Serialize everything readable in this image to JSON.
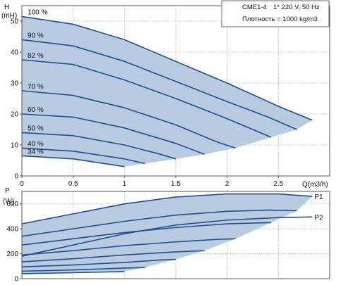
{
  "chart_data": [
    {
      "type": "line",
      "panel": "head",
      "ylabel": "H",
      "ylabel_unit": "(mH)",
      "xlim": [
        0,
        3.0
      ],
      "ylim": [
        0,
        55
      ],
      "xticks": [
        0,
        0.5,
        1,
        1.5,
        2,
        2.5
      ],
      "xtick_labels": [
        "0",
        "0.5",
        "1",
        "1.5",
        "2",
        "2.5"
      ],
      "yticks": [
        0,
        10,
        20,
        30,
        40,
        50
      ],
      "ytick_labels": [
        "0",
        "10",
        "20",
        "30",
        "40",
        "50"
      ],
      "grid": true,
      "info_title": "CME1-4",
      "info_supply": "1* 220 V, 50 Hz",
      "info_density": "Плотность = 1000 kg/m3",
      "series": [
        {
          "name": "100 %",
          "x": [
            0,
            0.5,
            1.0,
            1.5,
            2.0,
            2.5,
            2.83
          ],
          "y": [
            51.5,
            49,
            44,
            37,
            30,
            22.5,
            18
          ]
        },
        {
          "name": "90 %",
          "x": [
            0,
            0.5,
            1.0,
            1.5,
            2.0,
            2.4,
            2.68
          ],
          "y": [
            44,
            42,
            37,
            30.5,
            24,
            19,
            15
          ]
        },
        {
          "name": "82 %",
          "x": [
            0,
            0.5,
            1.0,
            1.5,
            2.0,
            2.43
          ],
          "y": [
            37.5,
            36,
            31,
            25,
            18.5,
            12.5
          ]
        },
        {
          "name": "70 %",
          "x": [
            0,
            0.5,
            1.0,
            1.5,
            1.9,
            2.08
          ],
          "y": [
            27.5,
            26,
            22,
            16.5,
            11,
            9
          ]
        },
        {
          "name": "60 %",
          "x": [
            0,
            0.5,
            1.0,
            1.5,
            1.78
          ],
          "y": [
            20,
            19,
            15.5,
            10.5,
            7
          ]
        },
        {
          "name": "50 %",
          "x": [
            0,
            0.5,
            1.0,
            1.35,
            1.5
          ],
          "y": [
            14,
            13,
            10,
            7,
            5.5
          ]
        },
        {
          "name": "40 %",
          "x": [
            0,
            0.5,
            1.0,
            1.2
          ],
          "y": [
            9,
            8,
            5.5,
            4
          ]
        },
        {
          "name": "34 %",
          "x": [
            0,
            0.5,
            0.9,
            1.0
          ],
          "y": [
            6.5,
            5.5,
            3.5,
            3
          ]
        }
      ]
    },
    {
      "type": "line",
      "panel": "power",
      "xlabel": "Q(m3/h)",
      "ylabel": "P",
      "ylabel_unit": "(W)",
      "xlim": [
        0,
        3.0
      ],
      "ylim": [
        0,
        700
      ],
      "yticks": [
        0,
        200,
        400,
        600
      ],
      "ytick_labels": [
        "0",
        "200",
        "400",
        "600"
      ],
      "grid": true,
      "series": [
        {
          "name": "P1",
          "x": [
            0,
            0.5,
            1.0,
            1.5,
            2.0,
            2.5,
            2.83
          ],
          "y": [
            440,
            520,
            600,
            655,
            680,
            680,
            660
          ]
        },
        {
          "name": "P2",
          "x": [
            0,
            0.5,
            1.0,
            1.5,
            2.0,
            2.5,
            2.83
          ],
          "y": [
            180,
            270,
            360,
            430,
            470,
            490,
            495
          ]
        },
        {
          "name": "",
          "x": [
            0,
            0.5,
            1.0,
            1.5,
            2.0,
            2.4,
            2.68
          ],
          "y": [
            340,
            400,
            460,
            510,
            540,
            550,
            545
          ]
        },
        {
          "name": "",
          "x": [
            0,
            0.5,
            1.0,
            1.5,
            2.0,
            2.43
          ],
          "y": [
            270,
            320,
            370,
            410,
            440,
            450
          ]
        },
        {
          "name": "",
          "x": [
            0,
            0.5,
            1.0,
            1.5,
            1.9,
            2.08
          ],
          "y": [
            190,
            225,
            265,
            295,
            315,
            320
          ]
        },
        {
          "name": "",
          "x": [
            0,
            0.5,
            1.0,
            1.5,
            1.78
          ],
          "y": [
            135,
            160,
            190,
            215,
            225
          ]
        },
        {
          "name": "",
          "x": [
            0,
            0.5,
            1.0,
            1.35,
            1.5
          ],
          "y": [
            95,
            110,
            130,
            150,
            155
          ]
        },
        {
          "name": "",
          "x": [
            0,
            0.5,
            1.0,
            1.2
          ],
          "y": [
            60,
            70,
            85,
            90
          ]
        },
        {
          "name": "",
          "x": [
            0,
            0.5,
            0.9,
            1.0
          ],
          "y": [
            40,
            48,
            55,
            58
          ]
        }
      ]
    }
  ],
  "colors": {
    "fill": "#b8cbe0",
    "curve": "#1f4f8f",
    "grid": "#8f8f8f",
    "frame": "#555555"
  }
}
